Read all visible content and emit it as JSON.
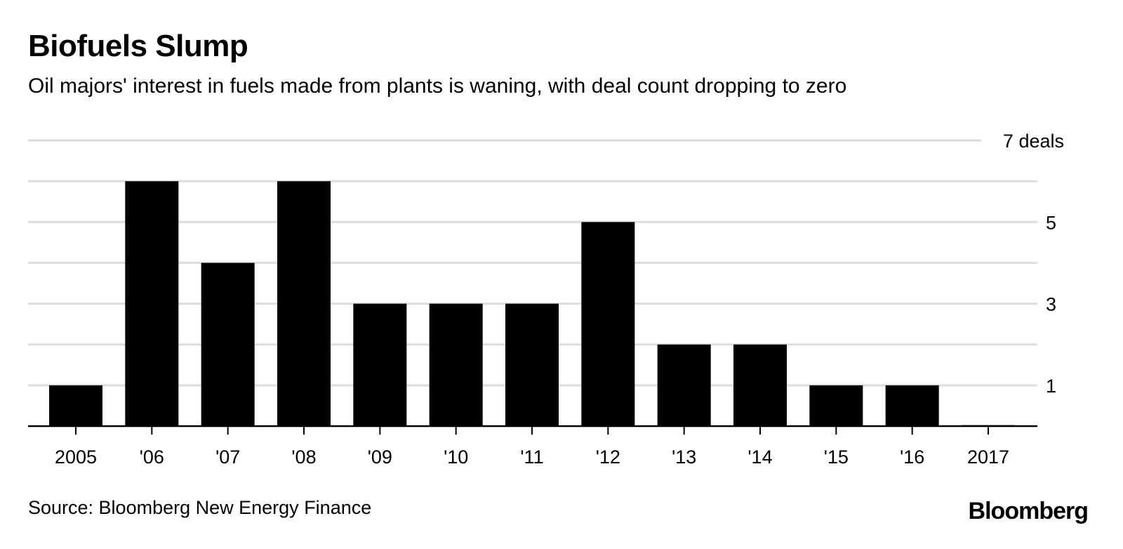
{
  "header": {
    "title": "Biofuels Slump",
    "subtitle": "Oil majors' interest in fuels made from plants is waning, with deal count dropping to zero"
  },
  "footer": {
    "source": "Source: Bloomberg New Energy Finance",
    "brand": "Bloomberg"
  },
  "colors": {
    "bar": "#000000",
    "grid": "#dddddd",
    "axis": "#000000"
  },
  "chart_data": {
    "type": "bar",
    "categories": [
      "2005",
      "'06",
      "'07",
      "'08",
      "'09",
      "'10",
      "'11",
      "'12",
      "'13",
      "'14",
      "'15",
      "'16",
      "2017"
    ],
    "values": [
      1,
      6,
      4,
      6,
      3,
      3,
      3,
      5,
      2,
      2,
      1,
      1,
      0
    ],
    "ylim": [
      0,
      7
    ],
    "y_ticks": [
      0,
      1,
      2,
      3,
      4,
      5,
      6,
      7
    ],
    "y_tick_labels": [
      "",
      "1",
      "",
      "3",
      "",
      "5",
      "",
      "7 deals"
    ],
    "grid": true,
    "y_axis_position": "right"
  }
}
